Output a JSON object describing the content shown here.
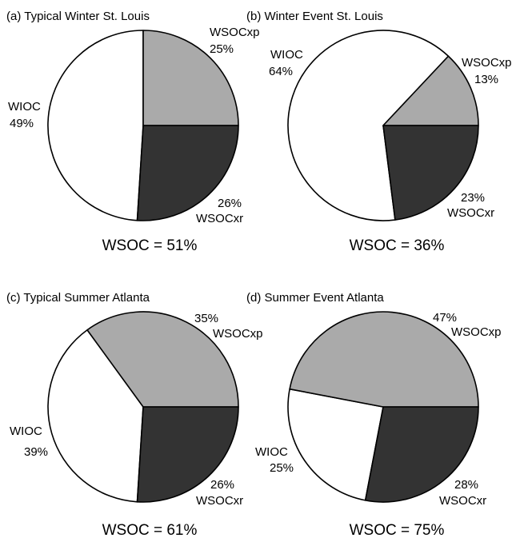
{
  "colors": {
    "WSOCxp": "#aaaaaa",
    "WSOCxr": "#333333",
    "WIOC": "#ffffff",
    "outline": "#000000"
  },
  "chart_data": [
    {
      "type": "pie",
      "title": "(a) Typical Winter St. Louis",
      "slices": [
        {
          "name": "WSOCxp",
          "value": 25,
          "label": "25%"
        },
        {
          "name": "WSOCxr",
          "value": 26,
          "label": "26%"
        },
        {
          "name": "WIOC",
          "value": 49,
          "label": "49%"
        }
      ],
      "total_label": "WSOC = 51%"
    },
    {
      "type": "pie",
      "title": "(b) Winter Event St. Louis",
      "slices": [
        {
          "name": "WSOCxp",
          "value": 13,
          "label": "13%"
        },
        {
          "name": "WSOCxr",
          "value": 23,
          "label": "23%"
        },
        {
          "name": "WIOC",
          "value": 64,
          "label": "64%"
        }
      ],
      "total_label": "WSOC = 36%"
    },
    {
      "type": "pie",
      "title": "(c) Typical Summer Atlanta",
      "slices": [
        {
          "name": "WSOCxp",
          "value": 35,
          "label": "35%"
        },
        {
          "name": "WSOCxr",
          "value": 26,
          "label": "26%"
        },
        {
          "name": "WIOC",
          "value": 39,
          "label": "39%"
        }
      ],
      "total_label": "WSOC = 61%"
    },
    {
      "type": "pie",
      "title": "(d) Summer Event Atlanta",
      "slices": [
        {
          "name": "WSOCxp",
          "value": 47,
          "label": "47%"
        },
        {
          "name": "WSOCxr",
          "value": 28,
          "label": "28%"
        },
        {
          "name": "WIOC",
          "value": 25,
          "label": "25%"
        }
      ],
      "total_label": "WSOC = 75%"
    }
  ]
}
